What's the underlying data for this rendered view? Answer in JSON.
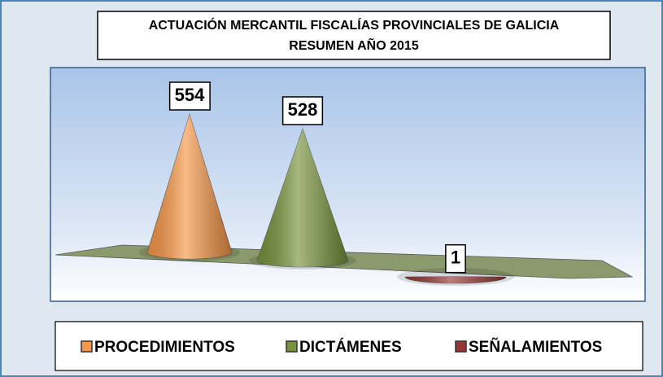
{
  "chart_data": {
    "type": "cone",
    "title": "ACTUACIÓN MERCANTIL FISCALÍAS PROVINCIALES DE GALICIA",
    "subtitle": "RESUMEN AÑO 2015",
    "series": [
      {
        "name": "PROCEDIMIENTOS",
        "color": "#f79646",
        "values": [
          554
        ]
      },
      {
        "name": "DICTÁMENES",
        "color": "#77933c",
        "values": [
          528
        ]
      },
      {
        "name": "SEÑALAMIENTOS",
        "color": "#953735",
        "values": [
          1
        ]
      }
    ]
  }
}
